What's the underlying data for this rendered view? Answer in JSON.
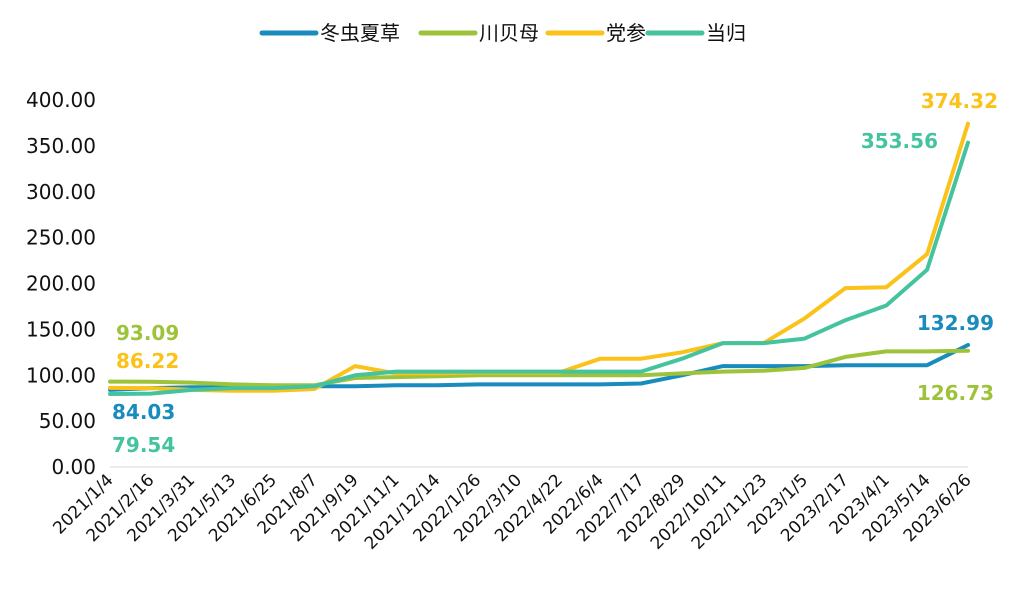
{
  "chart_data": {
    "type": "line",
    "title": "",
    "xlabel": "",
    "ylabel": "",
    "ylim": [
      0,
      400
    ],
    "yticks": [
      "0.00",
      "50.00",
      "100.00",
      "150.00",
      "200.00",
      "250.00",
      "300.00",
      "350.00",
      "400.00"
    ],
    "grid": false,
    "legend_position": "top",
    "x": [
      "2021/1/4",
      "2021/2/16",
      "2021/3/31",
      "2021/5/13",
      "2021/6/25",
      "2021/8/7",
      "2021/9/19",
      "2021/11/1",
      "2021/12/14",
      "2022/1/26",
      "2022/3/10",
      "2022/4/22",
      "2022/6/4",
      "2022/7/17",
      "2022/8/29",
      "2022/10/11",
      "2022/11/23",
      "2023/1/5",
      "2023/2/17",
      "2023/4/1",
      "2023/5/14",
      "2023/6/26"
    ],
    "series": [
      {
        "name": "冬虫夏草",
        "color": "#1a8bbd",
        "values": [
          84.03,
          86,
          87,
          87,
          88,
          88,
          88,
          89,
          89,
          90,
          90,
          90,
          90,
          91,
          100,
          110,
          110,
          110,
          111,
          111,
          111,
          132.99
        ],
        "start_label": "84.03",
        "end_label": "132.99"
      },
      {
        "name": "川贝母",
        "color": "#9dc33b",
        "values": [
          93.09,
          93,
          92,
          90,
          89,
          89,
          97,
          98,
          99,
          100,
          100,
          100,
          100,
          100,
          102,
          104,
          105,
          108,
          120,
          126,
          126,
          126.73
        ],
        "start_label": "93.09",
        "end_label": "126.73"
      },
      {
        "name": "党参",
        "color": "#fbc21a",
        "values": [
          86.22,
          86,
          84,
          83,
          83,
          85,
          110,
          102,
          102,
          103,
          103,
          103,
          118,
          118,
          125,
          135,
          135,
          162,
          195,
          196,
          232,
          374.32
        ],
        "start_label": "86.22",
        "end_label": "374.32"
      },
      {
        "name": "当归",
        "color": "#45c39f",
        "values": [
          79.54,
          80,
          84,
          86,
          86,
          88,
          100,
          104,
          104,
          104,
          104,
          104,
          104,
          104,
          118,
          135,
          135,
          140,
          160,
          176,
          215,
          353.56
        ],
        "start_label": "79.54",
        "end_label": "353.56"
      }
    ]
  }
}
